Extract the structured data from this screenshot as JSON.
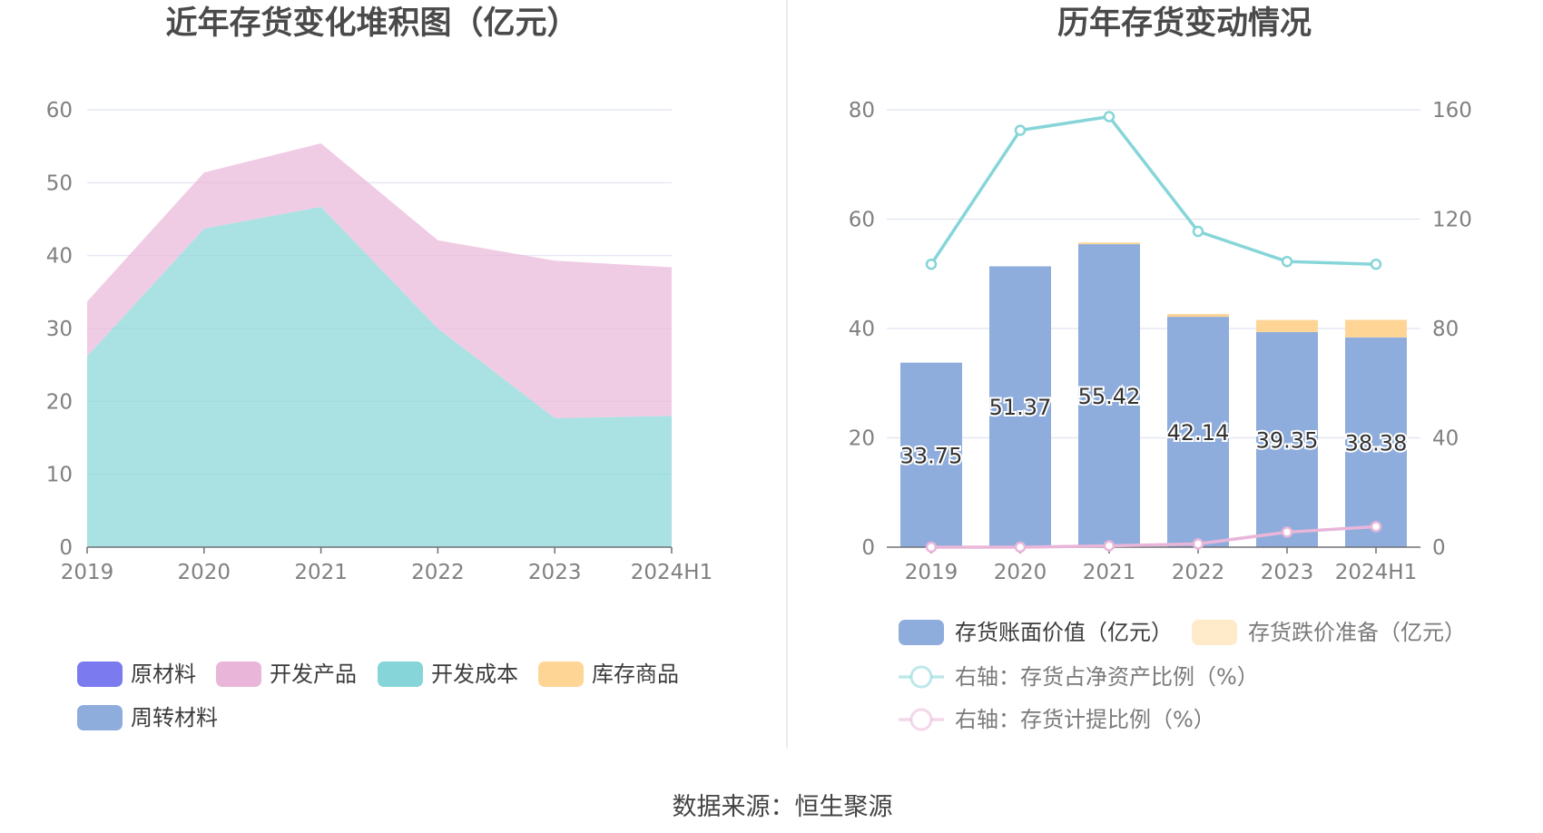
{
  "source_text": "数据来源：恒生聚源",
  "chart_data": [
    {
      "type": "area",
      "stacked": true,
      "title": "近年存货变化堆积图（亿元）",
      "categories": [
        "2019",
        "2020",
        "2021",
        "2022",
        "2023",
        "2024H1"
      ],
      "y_ticks": [
        "0",
        "10",
        "20",
        "30",
        "40",
        "50",
        "60"
      ],
      "ylim": [
        0,
        60
      ],
      "grid": true,
      "legend_position": "bottom",
      "series": [
        {
          "name": "原材料",
          "color": "#7b7bef",
          "values": [
            0,
            0,
            0,
            0,
            0,
            0
          ]
        },
        {
          "name": "开发产品",
          "color": "#e9b6d9",
          "values": [
            7.5,
            7.7,
            8.7,
            12.1,
            21.6,
            20.4
          ]
        },
        {
          "name": "开发成本",
          "color": "#86d5d8",
          "values": [
            26.2,
            43.7,
            46.7,
            30.0,
            17.7,
            18.0
          ]
        },
        {
          "name": "库存商品",
          "color": "#ffd596",
          "values": [
            0,
            0,
            0,
            0,
            0,
            0
          ]
        },
        {
          "name": "周转材料",
          "color": "#8eaddc",
          "values": [
            0,
            0,
            0,
            0,
            0,
            0
          ]
        }
      ]
    },
    {
      "type": "bar+line",
      "title": "历年存货变动情况",
      "categories": [
        "2019",
        "2020",
        "2021",
        "2022",
        "2023",
        "2024H1"
      ],
      "left_ticks": [
        "0",
        "20",
        "40",
        "60",
        "80"
      ],
      "right_ticks": [
        "0",
        "40",
        "80",
        "120",
        "160"
      ],
      "ylim_left": [
        0,
        80
      ],
      "ylim_right": [
        0,
        160
      ],
      "grid": true,
      "legend_position": "bottom",
      "bars": [
        {
          "name": "存货账面价值（亿元）",
          "color": "#8eaddc",
          "values": [
            33.75,
            51.37,
            55.42,
            42.14,
            39.35,
            38.38
          ],
          "labels": [
            "33.75",
            "51.37",
            "55.42",
            "42.14",
            "39.35",
            "38.38"
          ]
        },
        {
          "name": "存货跌价准备（亿元）",
          "color": "#ffd596",
          "values": [
            0,
            0,
            0.3,
            0.5,
            2.2,
            3.2
          ]
        }
      ],
      "lines": [
        {
          "name": "右轴：存货占净资产比例（%）",
          "color": "#86d5d8",
          "axis": "right",
          "values": [
            103.5,
            152.5,
            157.5,
            115.5,
            104.5,
            103.5
          ]
        },
        {
          "name": "右轴：存货计提比例（%）",
          "color": "#e9b6d9",
          "axis": "right",
          "values": [
            0,
            0,
            0.5,
            1.2,
            5.5,
            7.5
          ]
        }
      ]
    }
  ]
}
